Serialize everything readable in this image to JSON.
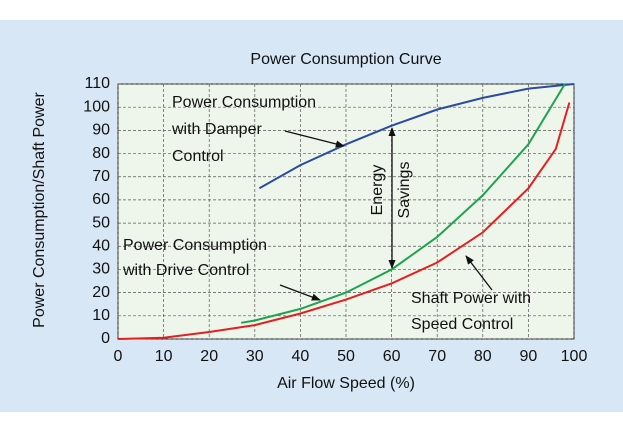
{
  "chart_data": {
    "type": "line",
    "title": "Power Consumption Curve",
    "xlabel": "Air Flow Speed (%)",
    "ylabel": "Power Consumption/Shaft Power",
    "xlim": [
      0,
      100
    ],
    "xticks": [
      0,
      10,
      20,
      30,
      40,
      50,
      60,
      70,
      80,
      90,
      100
    ],
    "ylim": [
      0,
      110
    ],
    "yticks": [
      0,
      10,
      20,
      30,
      40,
      50,
      60,
      70,
      80,
      90,
      100,
      110
    ],
    "grid": true,
    "series": [
      {
        "name": "Power Consumption with Damper Control",
        "color": "#2b4c9f",
        "x": [
          31,
          40,
          50,
          60,
          70,
          80,
          90,
          100
        ],
        "values": [
          65,
          75,
          84,
          92,
          99,
          104,
          108,
          110
        ]
      },
      {
        "name": "Power Consumption with Drive Control",
        "color": "#1fa34f",
        "x": [
          27,
          30,
          40,
          50,
          60,
          70,
          80,
          90,
          98
        ],
        "values": [
          7,
          8,
          13,
          20,
          30,
          44,
          62,
          84,
          110
        ]
      },
      {
        "name": "Shaft Power with Speed Control",
        "color": "#e3201f",
        "x": [
          0,
          10,
          20,
          30,
          40,
          50,
          60,
          70,
          80,
          90,
          96,
          99
        ],
        "values": [
          0,
          0.5,
          3,
          6,
          11,
          17,
          24,
          33,
          46,
          65,
          82,
          102
        ]
      }
    ],
    "annotations": [
      {
        "lines": [
          "Power Consumption",
          "with Damper",
          "Control"
        ]
      },
      {
        "lines": [
          "Power Consumption",
          "with Drive Control"
        ]
      },
      {
        "lines": [
          "Shaft Power with",
          "Speed Control"
        ]
      },
      {
        "lines": [
          "Energy",
          "Savings"
        ]
      }
    ]
  }
}
